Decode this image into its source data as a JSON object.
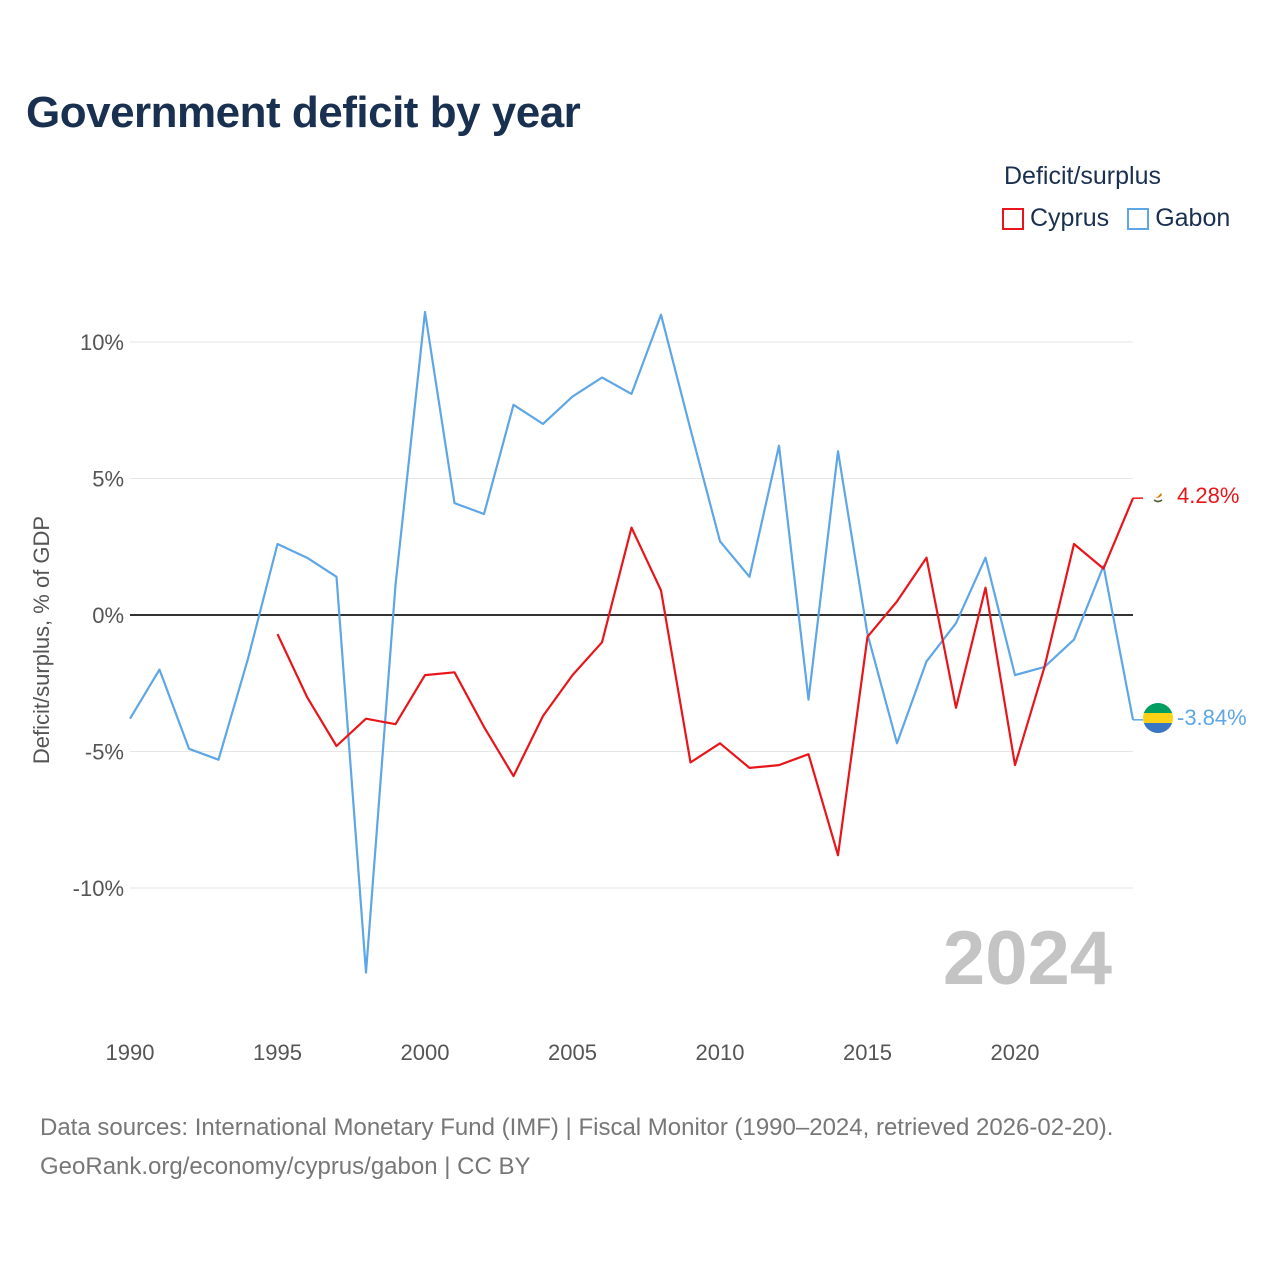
{
  "header": {
    "title": "Government deficit by year"
  },
  "legend": {
    "title": "Deficit/surplus",
    "items": [
      {
        "label": "Cyprus",
        "color": "#e8161b"
      },
      {
        "label": "Gabon",
        "color": "#5ea6e6"
      }
    ]
  },
  "watermark_year": "2024",
  "footer": {
    "line1": "Data sources: International Monetary Fund (IMF) | Fiscal Monitor (1990–2024, retrieved 2026-02-20).",
    "line2": "GeoRank.org/economy/cyprus/gabon | CC BY"
  },
  "chart_data": {
    "type": "line",
    "title": "Government deficit by year",
    "xlabel": "",
    "ylabel": "Deficit/surplus, % of GDP",
    "xlim": [
      1990,
      2024
    ],
    "ylim": [
      -13.5,
      12
    ],
    "x_ticks": [
      1990,
      1995,
      2000,
      2005,
      2010,
      2015,
      2020
    ],
    "y_ticks": [
      10,
      5,
      0,
      -5,
      -10
    ],
    "y_tick_labels": [
      "10%",
      "5%",
      "0%",
      "-5%",
      "-10%"
    ],
    "zero_line": true,
    "series": [
      {
        "name": "Cyprus",
        "color": "#e8161b",
        "end_label": "4.28%",
        "x": [
          1995,
          1996,
          1997,
          1998,
          1999,
          2000,
          2001,
          2002,
          2003,
          2004,
          2005,
          2006,
          2007,
          2008,
          2009,
          2010,
          2011,
          2012,
          2013,
          2014,
          2015,
          2016,
          2017,
          2018,
          2019,
          2020,
          2021,
          2022,
          2023,
          2024
        ],
        "values": [
          -0.7,
          -3.0,
          -4.8,
          -3.8,
          -4.0,
          -2.2,
          -2.1,
          -4.1,
          -5.9,
          -3.7,
          -2.2,
          -1.0,
          3.2,
          0.9,
          -5.4,
          -4.7,
          -5.6,
          -5.5,
          -5.1,
          -8.8,
          -0.8,
          0.5,
          2.1,
          -3.4,
          1.0,
          -5.5,
          -1.9,
          2.6,
          1.7,
          4.28
        ]
      },
      {
        "name": "Gabon",
        "color": "#5ea6e6",
        "end_label": "-3.84%",
        "x": [
          1990,
          1991,
          1992,
          1993,
          1994,
          1995,
          1996,
          1997,
          1998,
          1999,
          2000,
          2001,
          2002,
          2003,
          2004,
          2005,
          2006,
          2007,
          2008,
          2009,
          2010,
          2011,
          2012,
          2013,
          2014,
          2015,
          2016,
          2017,
          2018,
          2019,
          2020,
          2021,
          2022,
          2023,
          2024
        ],
        "values": [
          -3.8,
          -2.0,
          -4.9,
          -5.3,
          -1.6,
          2.6,
          2.1,
          1.4,
          -13.1,
          1.1,
          11.1,
          4.1,
          3.7,
          7.7,
          7.0,
          8.0,
          8.7,
          8.1,
          11.0,
          6.8,
          2.7,
          1.4,
          6.2,
          -3.1,
          6.0,
          -0.7,
          -4.7,
          -1.7,
          -0.3,
          2.1,
          -2.2,
          -1.9,
          -0.9,
          1.8,
          -3.84
        ]
      }
    ]
  }
}
